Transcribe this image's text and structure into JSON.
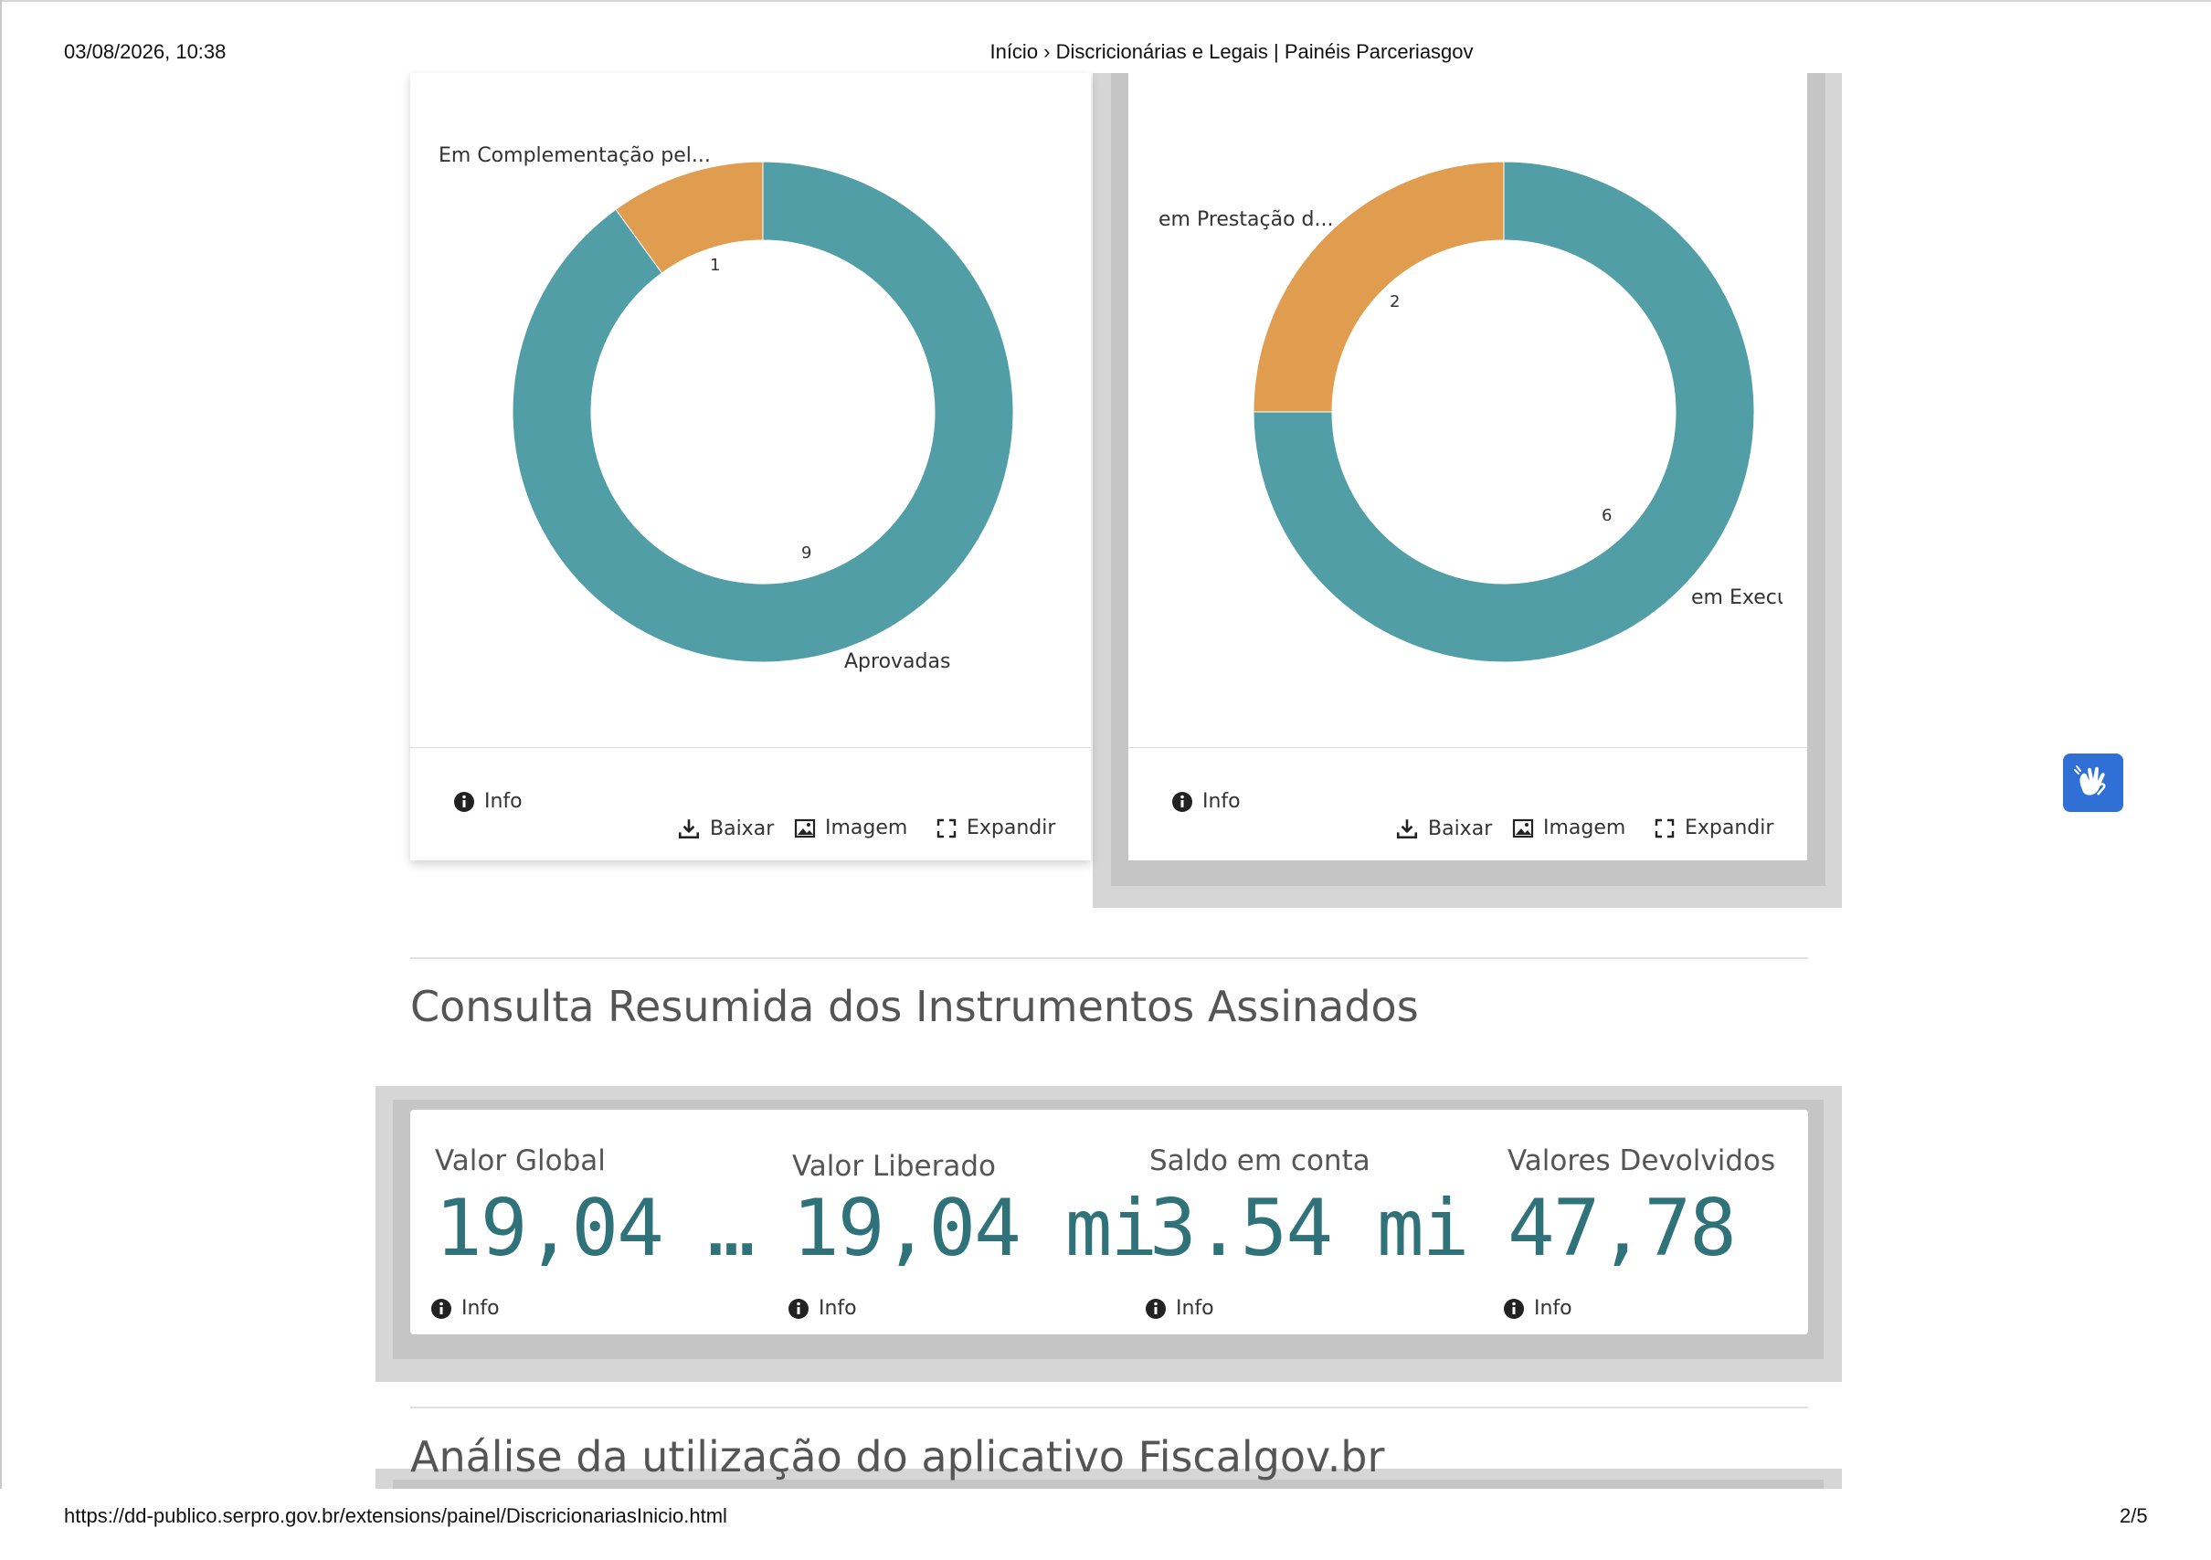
{
  "header": {
    "datetime": "03/08/2026, 10:38",
    "title": "Início › Discricionárias e Legais | Painéis Parceriasgov"
  },
  "footer": {
    "url": "https://dd-publico.serpro.gov.br/extensions/painel/DiscricionariasInicio.html",
    "page": "2/5"
  },
  "colors": {
    "teal": "#519ea6",
    "orange": "#e09d4f",
    "kpi_value": "#2f7279",
    "a11y_button": "#2f6fd6"
  },
  "chart_data": [
    {
      "type": "pie",
      "donut": true,
      "slices": [
        {
          "label": "Aprovadas",
          "value": 9,
          "color": "#519ea6"
        },
        {
          "label": "Em Complementação pel...",
          "value": 1,
          "color": "#e09d4f"
        }
      ]
    },
    {
      "type": "pie",
      "donut": true,
      "slices": [
        {
          "label": "em Execuç",
          "value": 6,
          "color": "#519ea6"
        },
        {
          "label": "em Prestação d...",
          "value": 2,
          "color": "#e09d4f"
        }
      ]
    }
  ],
  "panel_actions": {
    "info": "Info",
    "download": "Baixar",
    "image": "Imagem",
    "expand": "Expandir"
  },
  "section1": {
    "title": "Consulta Resumida dos Instrumentos Assinados"
  },
  "kpis": [
    {
      "label": "Valor Global",
      "value": "19,04 …",
      "info": "Info"
    },
    {
      "label": "Valor Liberado",
      "value": "19,04 mi",
      "info": "Info"
    },
    {
      "label": "Saldo em conta",
      "value": "3.54 mi",
      "info": "Info"
    },
    {
      "label": "Valores Devolvidos",
      "value": "47,78",
      "info": "Info"
    }
  ],
  "section2": {
    "title": "Análise da utilização do aplicativo Fiscalgov.br"
  },
  "a11y": {
    "icon": "sign-language-hands-icon"
  }
}
